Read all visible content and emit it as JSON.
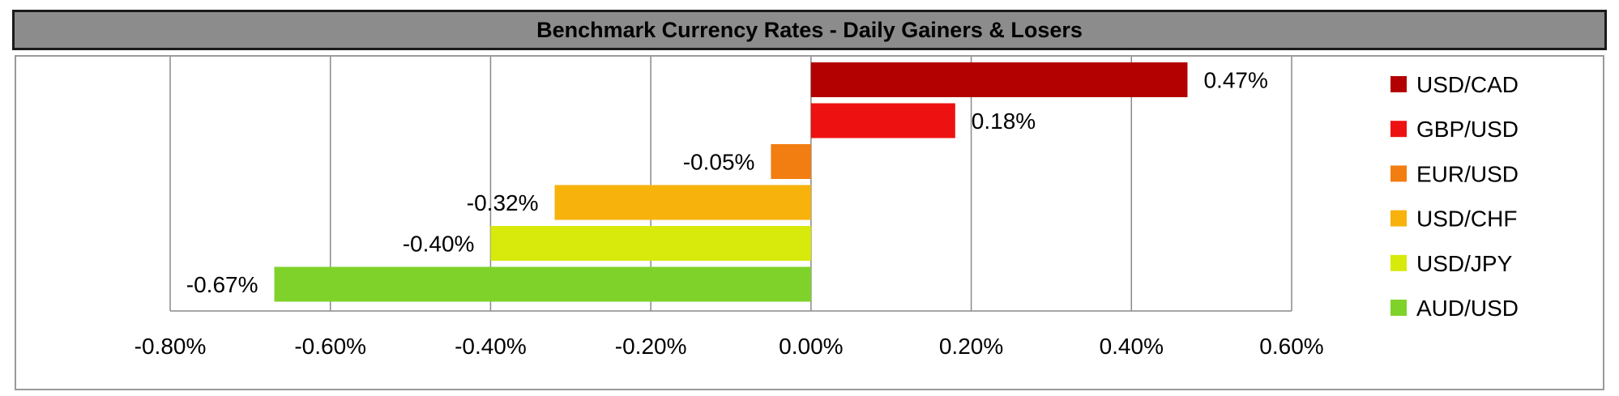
{
  "chart_data": {
    "type": "bar",
    "orientation": "horizontal",
    "title": "Benchmark Currency Rates - Daily Gainers & Losers",
    "categories": [
      "USD/CAD",
      "GBP/USD",
      "EUR/USD",
      "USD/CHF",
      "USD/JPY",
      "AUD/USD"
    ],
    "values": [
      0.47,
      0.18,
      -0.05,
      -0.32,
      -0.4,
      -0.67
    ],
    "data_labels": [
      "0.47%",
      "0.18%",
      "-0.05%",
      "-0.32%",
      "-0.40%",
      "-0.67%"
    ],
    "colors": [
      "#b30000",
      "#ee1111",
      "#f27d10",
      "#f7b20c",
      "#d7ea0c",
      "#7fd22a"
    ],
    "xlim": [
      -0.8,
      0.6
    ],
    "x_ticks": [
      -0.8,
      -0.6,
      -0.4,
      -0.2,
      0.0,
      0.2,
      0.4,
      0.6
    ],
    "x_tick_labels": [
      "-0.80%",
      "-0.60%",
      "-0.40%",
      "-0.20%",
      "0.00%",
      "0.20%",
      "0.40%",
      "0.60%"
    ],
    "grid": "vertical",
    "legend": {
      "position": "right",
      "entries": [
        "USD/CAD",
        "GBP/USD",
        "EUR/USD",
        "USD/CHF",
        "USD/JPY",
        "AUD/USD"
      ]
    },
    "xlabel": "",
    "ylabel": ""
  }
}
